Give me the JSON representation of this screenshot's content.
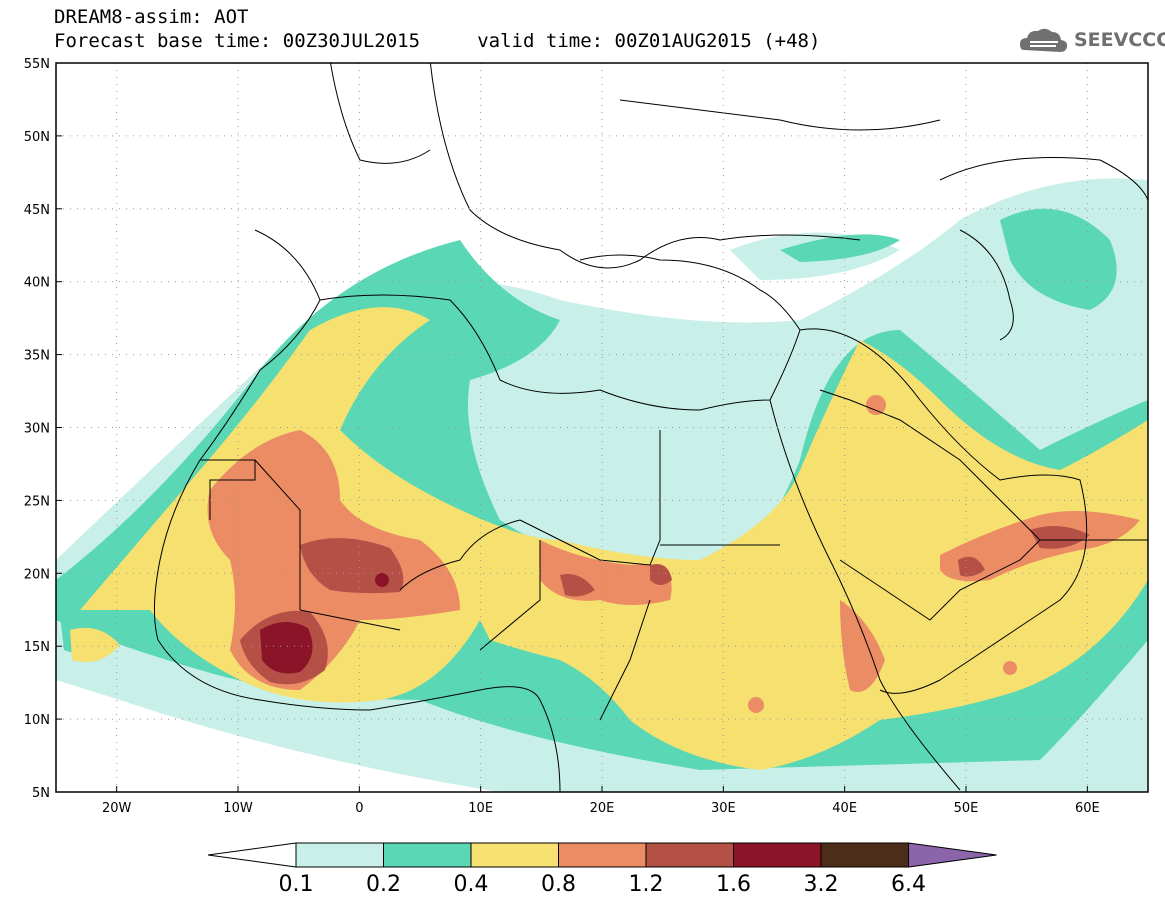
{
  "title": {
    "line1": "DREAM8-assim: AOT",
    "line2": "Forecast base time: 00Z30JUL2015     valid time: 00Z01AUG2015 (+48)"
  },
  "logo": {
    "text": "SEEVCCC",
    "icon": "cloud-logo-icon"
  },
  "map": {
    "lat_labels": [
      "55N",
      "50N",
      "45N",
      "40N",
      "35N",
      "30N",
      "25N",
      "20N",
      "15N",
      "10N",
      "5N"
    ],
    "lon_labels": [
      "20W",
      "10W",
      "0",
      "10E",
      "20E",
      "30E",
      "40E",
      "50E",
      "60E"
    ],
    "lat_range": [
      5,
      55
    ],
    "lon_range": [
      -25,
      65
    ],
    "grid": "dotted",
    "field": "AOT"
  },
  "colorbar": {
    "labels": [
      "0.1",
      "0.2",
      "0.4",
      "0.8",
      "1.2",
      "1.6",
      "3.2",
      "6.4"
    ],
    "colors": [
      "#ffffff",
      "#c8f0e8",
      "#5ad7b4",
      "#f5e070",
      "#eb8c64",
      "#b45046",
      "#8c1428",
      "#4b2d19",
      "#8c64aa"
    ]
  }
}
